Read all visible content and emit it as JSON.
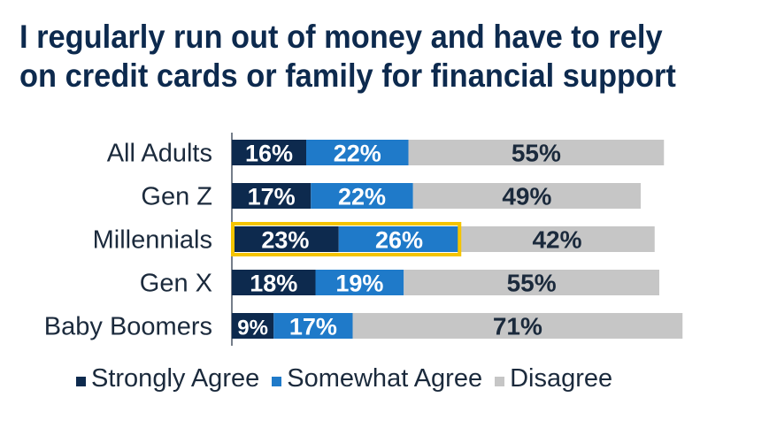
{
  "title_lines": [
    "I regularly run out of money and have to rely",
    "on credit cards or family for financial support"
  ],
  "colors": {
    "strongly_agree": "#0d2a4e",
    "somewhat_agree": "#1f7ac9",
    "disagree": "#c6c6c6",
    "highlight": "#f5c400",
    "title": "#0d2a4e"
  },
  "chart_data": {
    "type": "bar",
    "orientation": "horizontal",
    "stacked": true,
    "categories": [
      "All Adults",
      "Gen Z",
      "Millennials",
      "Gen X",
      "Baby Boomers"
    ],
    "series": [
      {
        "name": "Strongly Agree",
        "values": [
          16,
          17,
          23,
          18,
          9
        ]
      },
      {
        "name": "Somewhat Agree",
        "values": [
          22,
          22,
          26,
          19,
          17
        ]
      },
      {
        "name": "Disagree",
        "values": [
          55,
          49,
          42,
          55,
          71
        ]
      }
    ],
    "data_labels": [
      [
        "16%",
        "22%",
        "55%"
      ],
      [
        "17%",
        "22%",
        "49%"
      ],
      [
        "23%",
        "26%",
        "42%"
      ],
      [
        "18%",
        "19%",
        "55%"
      ],
      [
        "9%",
        "17%",
        "71%"
      ]
    ],
    "highlighted_category": "Millennials",
    "value_unit": "%",
    "xlim": [
      0,
      100
    ],
    "grid": false,
    "legend_position": "bottom"
  }
}
